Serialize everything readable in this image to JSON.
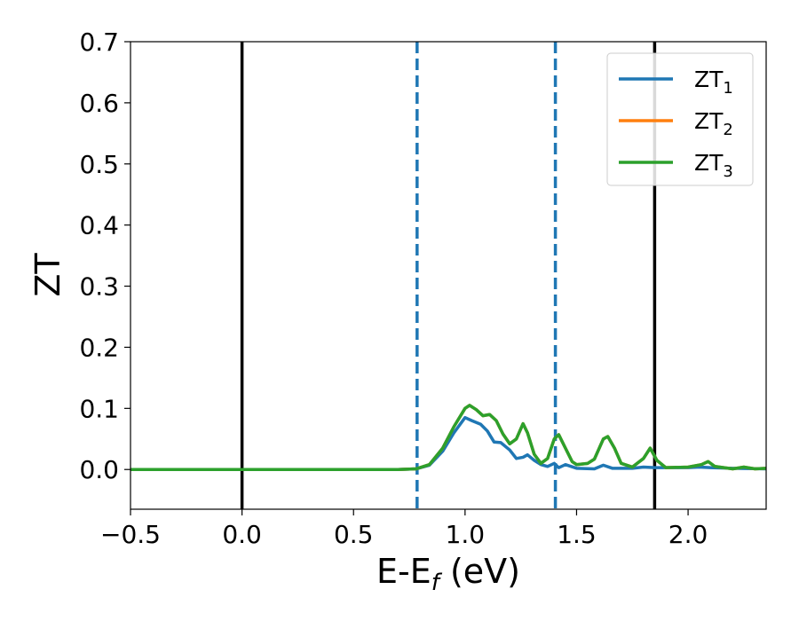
{
  "chart_data": {
    "type": "line",
    "xlabel": "E-E",
    "xlabel_sub": "f",
    "xlabel_unit": " (eV)",
    "ylabel": "ZT",
    "xlim": [
      -0.5,
      2.35
    ],
    "ylim": [
      -0.065,
      0.7
    ],
    "xticks": [
      -0.5,
      0.0,
      0.5,
      1.0,
      1.5,
      2.0
    ],
    "xtick_labels": [
      "−0.5",
      "0.0",
      "0.5",
      "1.0",
      "1.5",
      "2.0"
    ],
    "yticks": [
      0.0,
      0.1,
      0.2,
      0.3,
      0.4,
      0.5,
      0.6,
      0.7
    ],
    "ytick_labels": [
      "0.0",
      "0.1",
      "0.2",
      "0.3",
      "0.4",
      "0.5",
      "0.6",
      "0.7"
    ],
    "grid": false,
    "legend_position": "top-right",
    "vlines": [
      {
        "x": 0.0,
        "style": "solid",
        "color": "#000000"
      },
      {
        "x": 1.85,
        "style": "solid",
        "color": "#000000"
      },
      {
        "x": 0.785,
        "style": "dashed",
        "color": "#1f77b4"
      },
      {
        "x": 1.405,
        "style": "dashed",
        "color": "#1f77b4"
      }
    ],
    "series": [
      {
        "name": "ZT",
        "name_sub": "1",
        "color": "#1f77b4",
        "points": [
          [
            -0.5,
            0
          ],
          [
            0.7,
            0
          ],
          [
            0.78,
            0.001
          ],
          [
            0.84,
            0.007
          ],
          [
            0.9,
            0.03
          ],
          [
            0.95,
            0.06
          ],
          [
            1.0,
            0.085
          ],
          [
            1.03,
            0.08
          ],
          [
            1.07,
            0.074
          ],
          [
            1.1,
            0.063
          ],
          [
            1.13,
            0.045
          ],
          [
            1.16,
            0.044
          ],
          [
            1.2,
            0.032
          ],
          [
            1.23,
            0.018
          ],
          [
            1.26,
            0.02
          ],
          [
            1.28,
            0.024
          ],
          [
            1.31,
            0.015
          ],
          [
            1.34,
            0.008
          ],
          [
            1.37,
            0.005
          ],
          [
            1.4,
            0.01
          ],
          [
            1.42,
            0.003
          ],
          [
            1.45,
            0.008
          ],
          [
            1.5,
            0.002
          ],
          [
            1.58,
            0.001
          ],
          [
            1.62,
            0.007
          ],
          [
            1.66,
            0.002
          ],
          [
            1.75,
            0.002
          ],
          [
            1.8,
            0.004
          ],
          [
            1.85,
            0.003
          ],
          [
            1.9,
            0.003
          ],
          [
            2.0,
            0.003
          ],
          [
            2.05,
            0.004
          ],
          [
            2.1,
            0.003
          ],
          [
            2.2,
            0.002
          ],
          [
            2.35,
            0.001
          ]
        ]
      },
      {
        "name": "ZT",
        "name_sub": "2",
        "color": "#ff7f0e",
        "points": [
          [
            -0.5,
            0
          ],
          [
            0.7,
            0
          ],
          [
            0.78,
            0.001
          ],
          [
            0.84,
            0.008
          ],
          [
            0.9,
            0.035
          ],
          [
            0.95,
            0.07
          ],
          [
            1.0,
            0.1
          ],
          [
            1.02,
            0.105
          ],
          [
            1.05,
            0.098
          ],
          [
            1.08,
            0.088
          ],
          [
            1.11,
            0.09
          ],
          [
            1.14,
            0.08
          ],
          [
            1.17,
            0.058
          ],
          [
            1.2,
            0.042
          ],
          [
            1.23,
            0.05
          ],
          [
            1.26,
            0.075
          ],
          [
            1.28,
            0.06
          ],
          [
            1.31,
            0.025
          ],
          [
            1.34,
            0.01
          ],
          [
            1.37,
            0.018
          ],
          [
            1.4,
            0.05
          ],
          [
            1.42,
            0.057
          ],
          [
            1.45,
            0.035
          ],
          [
            1.48,
            0.013
          ],
          [
            1.5,
            0.008
          ],
          [
            1.55,
            0.01
          ],
          [
            1.58,
            0.017
          ],
          [
            1.62,
            0.05
          ],
          [
            1.64,
            0.054
          ],
          [
            1.67,
            0.035
          ],
          [
            1.7,
            0.01
          ],
          [
            1.75,
            0.004
          ],
          [
            1.8,
            0.018
          ],
          [
            1.83,
            0.035
          ],
          [
            1.86,
            0.015
          ],
          [
            1.9,
            0.003
          ],
          [
            2.0,
            0.004
          ],
          [
            2.06,
            0.008
          ],
          [
            2.09,
            0.013
          ],
          [
            2.12,
            0.005
          ],
          [
            2.2,
            0.001
          ],
          [
            2.25,
            0.004
          ],
          [
            2.3,
            0.001
          ],
          [
            2.35,
            0.002
          ]
        ]
      },
      {
        "name": "ZT",
        "name_sub": "3",
        "color": "#2ca02c",
        "points": [
          [
            -0.5,
            0
          ],
          [
            0.7,
            0
          ],
          [
            0.78,
            0.001
          ],
          [
            0.84,
            0.008
          ],
          [
            0.9,
            0.035
          ],
          [
            0.95,
            0.07
          ],
          [
            1.0,
            0.1
          ],
          [
            1.02,
            0.105
          ],
          [
            1.05,
            0.098
          ],
          [
            1.08,
            0.088
          ],
          [
            1.11,
            0.09
          ],
          [
            1.14,
            0.08
          ],
          [
            1.17,
            0.058
          ],
          [
            1.2,
            0.042
          ],
          [
            1.23,
            0.05
          ],
          [
            1.26,
            0.075
          ],
          [
            1.28,
            0.06
          ],
          [
            1.31,
            0.025
          ],
          [
            1.34,
            0.01
          ],
          [
            1.37,
            0.018
          ],
          [
            1.4,
            0.05
          ],
          [
            1.42,
            0.057
          ],
          [
            1.45,
            0.035
          ],
          [
            1.48,
            0.013
          ],
          [
            1.5,
            0.008
          ],
          [
            1.55,
            0.01
          ],
          [
            1.58,
            0.017
          ],
          [
            1.62,
            0.05
          ],
          [
            1.64,
            0.054
          ],
          [
            1.67,
            0.035
          ],
          [
            1.7,
            0.01
          ],
          [
            1.75,
            0.004
          ],
          [
            1.8,
            0.018
          ],
          [
            1.83,
            0.035
          ],
          [
            1.86,
            0.015
          ],
          [
            1.9,
            0.003
          ],
          [
            2.0,
            0.004
          ],
          [
            2.06,
            0.008
          ],
          [
            2.09,
            0.013
          ],
          [
            2.12,
            0.005
          ],
          [
            2.2,
            0.001
          ],
          [
            2.25,
            0.004
          ],
          [
            2.3,
            0.001
          ],
          [
            2.35,
            0.002
          ]
        ]
      }
    ]
  }
}
